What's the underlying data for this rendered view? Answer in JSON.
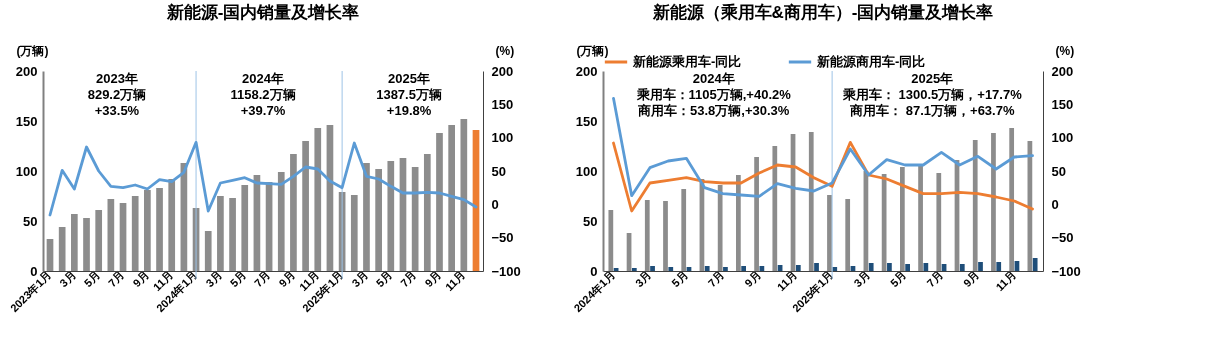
{
  "chart_data": [
    {
      "type": "bar",
      "title": "新能源-国内销量及增长率",
      "ylabel": "(万辆)",
      "y2label": "(%)",
      "categories": [
        "2023年1月",
        null,
        "3月",
        null,
        "5月",
        null,
        "7月",
        null,
        "9月",
        null,
        "11月",
        null,
        "2024年1月",
        null,
        "3月",
        null,
        "5月",
        null,
        "7月",
        null,
        "9月",
        null,
        "11月",
        null,
        "2025年1月",
        null,
        "3月",
        null,
        "5月",
        null,
        "7月",
        null,
        "9月",
        null,
        "11月",
        null
      ],
      "series": [
        {
          "colors": [
            "#8c8c8c",
            "#8c8c8c",
            "#8c8c8c",
            "#8c8c8c",
            "#8c8c8c",
            "#8c8c8c",
            "#8c8c8c",
            "#8c8c8c",
            "#8c8c8c",
            "#8c8c8c",
            "#8c8c8c",
            "#8c8c8c",
            "#8c8c8c",
            "#8c8c8c",
            "#8c8c8c",
            "#8c8c8c",
            "#8c8c8c",
            "#8c8c8c",
            "#8c8c8c",
            "#8c8c8c",
            "#8c8c8c",
            "#8c8c8c",
            "#8c8c8c",
            "#8c8c8c",
            "#8c8c8c",
            "#8c8c8c",
            "#8c8c8c",
            "#8c8c8c",
            "#8c8c8c",
            "#8c8c8c",
            "#8c8c8c",
            "#8c8c8c",
            "#8c8c8c",
            "#8c8c8c",
            "#8c8c8c",
            "#ed7d31"
          ],
          "values": [
            32,
            44,
            57,
            53,
            61,
            72,
            68,
            75,
            81,
            83,
            92,
            108,
            63,
            40,
            75,
            73,
            86,
            96,
            89,
            99,
            117,
            130,
            143,
            146,
            79,
            76,
            108,
            102,
            110,
            113,
            104,
            117,
            138,
            146,
            152,
            141
          ]
        },
        {
          "type": "line",
          "axis": "y2",
          "color": "#5b9bd5",
          "values": [
            -16,
            51,
            23,
            86,
            50,
            27,
            25,
            29,
            23,
            37,
            34,
            48,
            93,
            -10,
            32,
            36,
            40,
            32,
            31,
            30,
            42,
            56,
            53,
            35,
            25,
            92,
            42,
            38,
            27,
            17,
            17,
            18,
            17,
            12,
            7,
            -4
          ]
        }
      ],
      "ylim": [
        0,
        200
      ],
      "yticks": [
        0,
        50,
        100,
        150,
        200
      ],
      "y2lim": [
        -100,
        200
      ],
      "y2ticks": [
        -100,
        -50,
        0,
        50,
        100,
        150,
        200
      ],
      "ref_lines": [
        {
          "axis": "x",
          "value": "2024年1月",
          "color": "#9dc3e6"
        },
        {
          "axis": "x",
          "value": "2025年1月",
          "color": "#9dc3e6"
        }
      ],
      "annotations": [
        "2023年",
        "829.2万辆",
        "+33.5%",
        "2024年",
        "1158.2万辆",
        "+39.7%",
        "2025年",
        "1387.5万辆",
        "+19.8%"
      ],
      "grid": false,
      "marker": "none",
      "line_style": "solid"
    },
    {
      "type": "bar",
      "title": "新能源（乘用车&商用车）-国内销量及增长率",
      "ylabel": "(万辆)",
      "y2label": "(%)",
      "categories": [
        "2024年1月",
        null,
        "3月",
        null,
        "5月",
        null,
        "7月",
        null,
        "9月",
        null,
        "11月",
        null,
        "2025年1月",
        null,
        "3月",
        null,
        "5月",
        null,
        "7月",
        null,
        "9月",
        null,
        "11月",
        null
      ],
      "series": [
        {
          "color": "#8c8c8c",
          "values": [
            61,
            38,
            71,
            70,
            82,
            92,
            86,
            96,
            114,
            125,
            137,
            139,
            76,
            72,
            100,
            97,
            104,
            105,
            98,
            111,
            131,
            138,
            143,
            130
          ]
        },
        {
          "color": "#1f4e79",
          "values": [
            3,
            3,
            5,
            4,
            4,
            5,
            4,
            5,
            5,
            6,
            6,
            8,
            4,
            5,
            8,
            8,
            7,
            8,
            7,
            7,
            9,
            9,
            10,
            13
          ]
        },
        {
          "type": "line",
          "axis": "y2",
          "name": "新能源乘用车-同比",
          "color": "#ed7d31",
          "values": [
            92,
            -10,
            32,
            36,
            40,
            34,
            32,
            32,
            47,
            59,
            56,
            40,
            27,
            93,
            44,
            38,
            27,
            16,
            16,
            18,
            16,
            11,
            5,
            -7
          ]
        },
        {
          "type": "line",
          "axis": "y2",
          "name": "新能源商用车-同比",
          "color": "#5b9bd5",
          "values": [
            159,
            13,
            55,
            65,
            69,
            25,
            16,
            14,
            12,
            31,
            24,
            20,
            32,
            83,
            44,
            67,
            59,
            59,
            78,
            59,
            72,
            53,
            71,
            73
          ]
        }
      ],
      "ylim": [
        0,
        200
      ],
      "yticks": [
        0,
        50,
        100,
        150,
        200
      ],
      "y2lim": [
        -100,
        200
      ],
      "y2ticks": [
        -100,
        -50,
        0,
        50,
        100,
        150,
        200
      ],
      "ref_lines": [
        {
          "axis": "x",
          "value": "2025年1月",
          "color": "#9dc3e6"
        }
      ],
      "annotations": [
        "2024年",
        "乘用车：1105万辆,+40.2%",
        "商用车：53.8万辆,+30.3%",
        "2025年",
        "乘用车：  1300.5万辆，+17.7%",
        "商用车：  87.1万辆，+63.7%"
      ],
      "grid": false,
      "legend": "top",
      "marker": "none",
      "line_style": "solid"
    }
  ]
}
